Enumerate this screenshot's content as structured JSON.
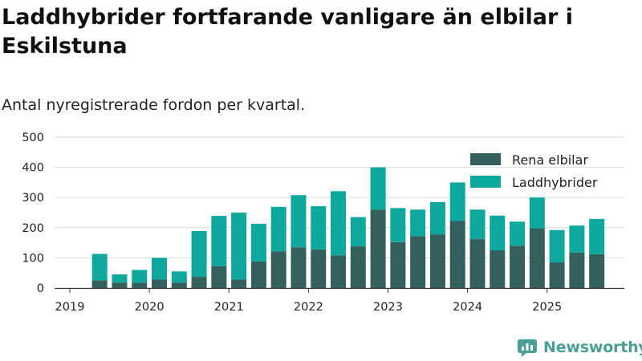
{
  "title": "Laddhybrider fortfarande vanligare än elbilar i Eskilstuna",
  "subtitle": "Antal nyregistrerade fordon per kvartal.",
  "brand": {
    "name": "Newsworthy",
    "color": "#4a9f95"
  },
  "colors": {
    "electric": "#335f5c",
    "hybrid": "#0ea89e",
    "grid": "#d9d9d9",
    "axis": "#333333"
  },
  "chart_data": {
    "type": "bar",
    "stacked": true,
    "title": "Laddhybrider fortfarande vanligare än elbilar i Eskilstuna",
    "subtitle": "Antal nyregistrerade fordon per kvartal.",
    "xlabel": "",
    "ylabel": "",
    "ylim": [
      0,
      500
    ],
    "yticks": [
      0,
      100,
      200,
      300,
      400,
      500
    ],
    "xticks": [
      "2019",
      "2020",
      "2021",
      "2022",
      "2023",
      "2024",
      "2025"
    ],
    "xlim": [
      "2019 Q1",
      "2025 Q4"
    ],
    "categories": [
      "2019 Q2",
      "2019 Q3",
      "2019 Q4",
      "2020 Q1",
      "2020 Q2",
      "2020 Q3",
      "2020 Q4",
      "2021 Q1",
      "2021 Q2",
      "2021 Q3",
      "2021 Q4",
      "2022 Q1",
      "2022 Q2",
      "2022 Q3",
      "2022 Q4",
      "2023 Q1",
      "2023 Q2",
      "2023 Q3",
      "2023 Q4",
      "2024 Q1",
      "2024 Q2",
      "2024 Q3",
      "2024 Q4",
      "2025 Q1",
      "2025 Q2",
      "2025 Q3"
    ],
    "legend_position": "top-right",
    "series": [
      {
        "name": "Rena elbilar",
        "color": "#335f5c",
        "values": [
          25,
          18,
          18,
          28,
          18,
          37,
          72,
          28,
          88,
          122,
          135,
          128,
          108,
          138,
          260,
          152,
          172,
          177,
          222,
          162,
          125,
          140,
          198,
          85,
          117,
          112
        ]
      },
      {
        "name": "Laddhybrider",
        "color": "#0ea89e",
        "values": [
          88,
          27,
          42,
          72,
          37,
          152,
          167,
          222,
          125,
          147,
          173,
          143,
          213,
          97,
          140,
          113,
          88,
          108,
          128,
          98,
          115,
          80,
          102,
          107,
          90,
          117
        ]
      }
    ]
  }
}
